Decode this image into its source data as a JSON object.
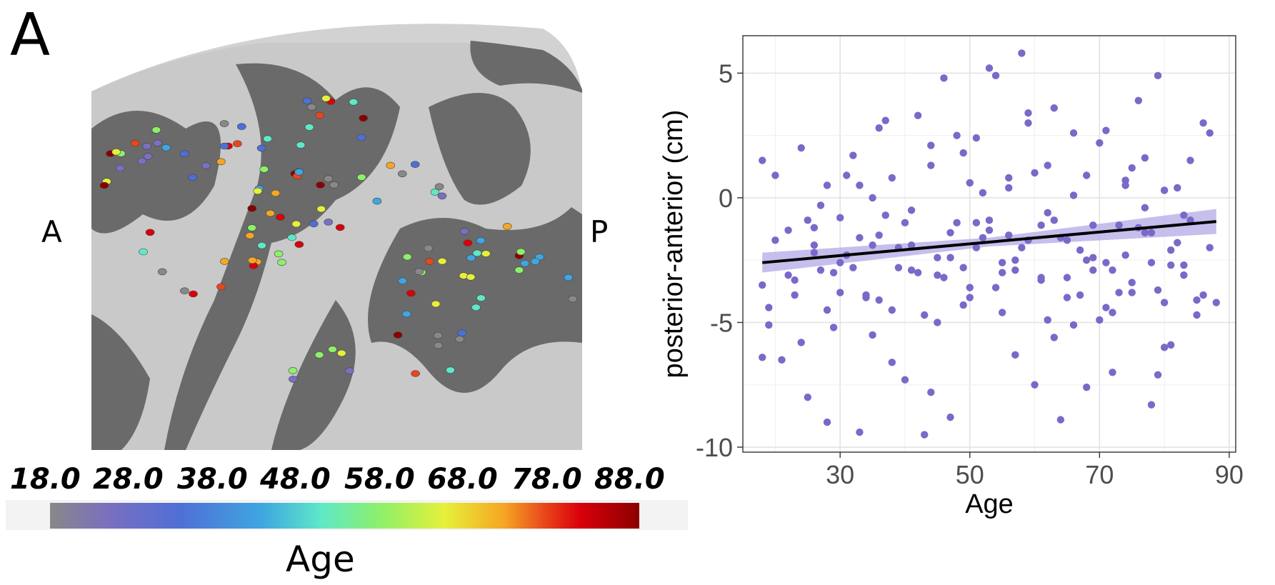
{
  "panel_label": "A",
  "brain_map": {
    "anterior_label": "A",
    "posterior_label": "P",
    "colorbar": {
      "title": "Age",
      "ticks": [
        "18.0",
        "28.0",
        "38.0",
        "48.0",
        "58.0",
        "68.0",
        "78.0",
        "88.0"
      ],
      "colormap": [
        "#888888",
        "#7a6fc0",
        "#4f6fd6",
        "#3fa6e0",
        "#5fe8c8",
        "#8df06a",
        "#e6f03a",
        "#f5a623",
        "#e8461b",
        "#d9000a",
        "#8b0000"
      ]
    }
  },
  "chart_data": {
    "type": "scatter",
    "xlabel": "Age",
    "ylabel": "posterior-anterior (cm)",
    "xlim": [
      15,
      91
    ],
    "ylim": [
      -10.2,
      6.5
    ],
    "xticks": [
      30,
      50,
      70,
      90
    ],
    "yticks": [
      5,
      0,
      -5,
      -10
    ],
    "ytick_labels": [
      "5",
      "0",
      "-5",
      "-10"
    ],
    "grid": true,
    "point_color": "#7b68c8",
    "fit_line_color": "#000000",
    "ci_band_color": "#b3a8e6",
    "fit": {
      "x": [
        18,
        88
      ],
      "y": [
        -2.6,
        -0.95
      ]
    },
    "ci": {
      "x": [
        18,
        53,
        88
      ],
      "lower": [
        -3.0,
        -1.95,
        -1.45
      ],
      "upper": [
        -2.2,
        -1.6,
        -0.45
      ]
    },
    "series": [
      {
        "x": [
          18,
          18,
          19,
          18,
          20,
          22,
          23,
          24,
          25,
          26,
          27,
          28,
          28,
          29,
          30,
          31,
          32,
          33,
          34,
          35,
          36,
          37,
          38,
          39,
          40,
          41,
          42,
          43,
          44,
          45,
          46,
          47,
          48,
          49,
          50,
          51,
          52,
          53,
          54,
          55,
          56,
          57,
          58,
          59,
          60,
          61,
          62,
          63,
          64,
          65,
          66,
          67,
          68,
          69,
          70,
          71,
          72,
          73,
          74,
          75,
          76,
          77,
          78,
          79,
          80,
          81,
          82,
          83,
          84,
          85,
          86,
          87,
          88,
          19,
          21,
          24,
          26,
          29,
          31,
          33,
          35,
          37,
          39,
          41,
          43,
          45,
          47,
          49,
          51,
          53,
          55,
          57,
          59,
          61,
          63,
          65,
          67,
          69,
          71,
          73,
          75,
          77,
          79,
          81,
          83,
          85,
          87,
          20,
          23,
          27,
          30,
          34,
          36,
          38,
          42,
          44,
          46,
          48,
          50,
          52,
          54,
          56,
          58,
          60,
          62,
          64,
          66,
          68,
          70,
          72,
          74,
          76,
          78,
          80,
          82,
          84,
          86,
          25,
          28,
          32,
          35,
          38,
          41,
          44,
          47,
          50,
          53,
          56,
          59,
          62,
          65,
          68,
          71,
          74,
          77,
          80,
          83,
          22,
          26,
          30,
          33,
          36,
          40,
          45,
          49,
          51,
          55,
          57,
          61,
          63,
          66,
          69,
          72,
          75,
          78,
          79,
          81
        ],
        "y": [
          1.5,
          -6.4,
          -5.1,
          -3.5,
          0.9,
          -1.3,
          -3.3,
          2.0,
          -8.0,
          -1.2,
          -2.9,
          0.5,
          -9.0,
          -3.0,
          -0.8,
          -2.3,
          1.7,
          -9.4,
          -4.0,
          0.0,
          -1.5,
          3.1,
          -6.6,
          -2.8,
          -7.3,
          -0.5,
          3.3,
          -9.5,
          -7.8,
          -2.4,
          4.8,
          -8.8,
          -1.0,
          1.8,
          -3.6,
          -2.0,
          0.2,
          5.2,
          4.9,
          -2.6,
          -1.5,
          -6.3,
          5.8,
          3.0,
          -7.5,
          -3.3,
          -0.6,
          3.6,
          -8.9,
          -4.0,
          2.6,
          -2.1,
          -7.6,
          -1.1,
          -4.9,
          2.7,
          -7.0,
          -3.8,
          -2.3,
          1.2,
          3.9,
          -0.4,
          -8.3,
          4.9,
          -6.0,
          -2.7,
          0.4,
          -3.1,
          1.5,
          -4.7,
          3.0,
          -2.0,
          -4.2,
          -4.4,
          -6.5,
          -5.8,
          -2.2,
          -5.2,
          0.9,
          -1.6,
          -5.5,
          -0.7,
          -2.0,
          -1.9,
          -4.7,
          -5.0,
          -1.4,
          -4.3,
          2.4,
          -0.9,
          -4.6,
          -2.5,
          3.4,
          -3.2,
          -5.6,
          -1.7,
          -3.9,
          -2.4,
          -4.4,
          -1.1,
          -3.4,
          -1.4,
          -7.1,
          -5.9,
          -2.7,
          -4.1,
          2.6,
          -1.7,
          -3.9,
          -0.3,
          -2.6,
          -3.9,
          2.8,
          -4.5,
          -3.0,
          2.1,
          -3.2,
          2.5,
          -4.0,
          -1.6,
          -3.6,
          0.8,
          -2.0,
          1.0,
          -4.9,
          -1.6,
          0.1,
          -2.5,
          2.2,
          -2.9,
          0.7,
          -1.2,
          -2.6,
          0.3,
          -1.8,
          -0.9,
          -3.9,
          -0.9,
          -4.5,
          -2.8,
          -1.9,
          0.8,
          -2.9,
          1.3,
          -2.4,
          0.6,
          -1.3,
          0.4,
          -1.7,
          1.3,
          -3.2,
          0.9,
          -2.6,
          0.5,
          1.6,
          -4.2,
          -0.7,
          -3.1,
          -1.9,
          -3.8,
          0.5,
          -4.1,
          -1.0,
          -3.1,
          -2.8,
          -1.0,
          -3.0,
          -2.9,
          -1.1,
          -0.9,
          -5.1,
          -2.9,
          -4.6,
          -3.8,
          -1.4,
          -3.7,
          -2.1
        ]
      }
    ]
  }
}
